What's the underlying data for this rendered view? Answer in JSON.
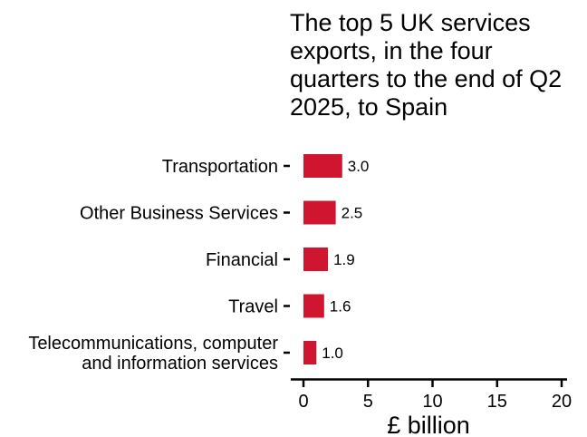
{
  "chart_data": {
    "type": "bar",
    "orientation": "horizontal",
    "title": "The top 5 UK services exports, in the four quarters to the end of Q2 2025, to Spain",
    "xlabel": "£ billion",
    "ylabel": "",
    "xlim": [
      0,
      20
    ],
    "xticks": [
      0,
      5,
      10,
      15,
      20
    ],
    "grid": false,
    "bar_color": "#cf1530",
    "categories": [
      [
        "Transportation"
      ],
      [
        "Other Business Services"
      ],
      [
        "Financial"
      ],
      [
        "Travel"
      ],
      [
        "Telecommunications, computer",
        "and information services"
      ]
    ],
    "values": [
      3.0,
      2.5,
      1.9,
      1.6,
      1.0
    ],
    "value_labels": [
      "3.0",
      "2.5",
      "1.9",
      "1.6",
      "1.0"
    ]
  }
}
